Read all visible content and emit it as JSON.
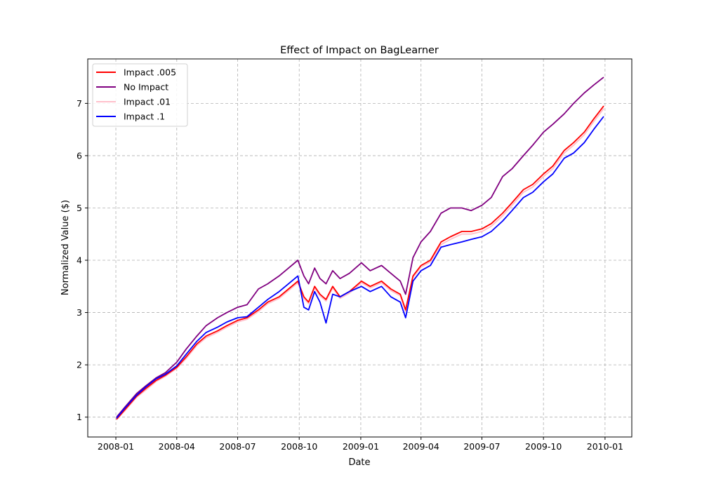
{
  "chart_data": {
    "type": "line",
    "title": "Effect of Impact on BagLearner",
    "xlabel": "Date",
    "ylabel": "Normalized Value ($)",
    "x_ticks": [
      "2008-01",
      "2008-04",
      "2008-07",
      "2008-10",
      "2009-01",
      "2009-04",
      "2009-07",
      "2009-10",
      "2010-01"
    ],
    "y_ticks": [
      1,
      2,
      3,
      4,
      5,
      6,
      7
    ],
    "xlim": [
      "2007-11-20",
      "2010-02-10"
    ],
    "ylim": [
      0.62,
      7.85
    ],
    "grid": true,
    "legend_position": "top-left",
    "colors": {
      "impact_005": "#ff0000",
      "no_impact": "#800080",
      "impact_01": "#ffc0cb",
      "impact_1": "#0000ff",
      "grid": "#b0b0b0"
    },
    "series": [
      {
        "name": "Impact .005",
        "color": "#ff0000",
        "x": [
          "2008-01-02",
          "2008-01-15",
          "2008-02-01",
          "2008-02-15",
          "2008-03-01",
          "2008-03-15",
          "2008-04-01",
          "2008-04-15",
          "2008-05-01",
          "2008-05-15",
          "2008-06-01",
          "2008-06-15",
          "2008-07-01",
          "2008-07-15",
          "2008-08-01",
          "2008-08-15",
          "2008-09-01",
          "2008-09-15",
          "2008-09-29",
          "2008-10-08",
          "2008-10-15",
          "2008-10-24",
          "2008-11-01",
          "2008-11-10",
          "2008-11-20",
          "2008-12-01",
          "2008-12-15",
          "2009-01-02",
          "2009-01-15",
          "2009-02-01",
          "2009-02-15",
          "2009-03-01",
          "2009-03-09",
          "2009-03-20",
          "2009-04-01",
          "2009-04-15",
          "2009-05-01",
          "2009-05-15",
          "2009-06-01",
          "2009-06-15",
          "2009-07-01",
          "2009-07-15",
          "2009-08-01",
          "2009-08-15",
          "2009-09-01",
          "2009-09-15",
          "2009-10-01",
          "2009-10-15",
          "2009-11-01",
          "2009-11-15",
          "2009-12-01",
          "2009-12-15",
          "2009-12-30"
        ],
        "y": [
          0.96,
          1.15,
          1.4,
          1.55,
          1.7,
          1.8,
          1.95,
          2.15,
          2.4,
          2.55,
          2.65,
          2.75,
          2.85,
          2.9,
          3.05,
          3.2,
          3.3,
          3.45,
          3.6,
          3.3,
          3.2,
          3.5,
          3.35,
          3.25,
          3.5,
          3.3,
          3.4,
          3.6,
          3.5,
          3.6,
          3.45,
          3.35,
          3.05,
          3.7,
          3.9,
          4.0,
          4.35,
          4.45,
          4.55,
          4.55,
          4.6,
          4.7,
          4.9,
          5.1,
          5.35,
          5.45,
          5.65,
          5.8,
          6.1,
          6.25,
          6.45,
          6.7,
          6.95
        ]
      },
      {
        "name": "No Impact",
        "color": "#800080",
        "x": [
          "2008-01-02",
          "2008-01-15",
          "2008-02-01",
          "2008-02-15",
          "2008-03-01",
          "2008-03-15",
          "2008-04-01",
          "2008-04-15",
          "2008-05-01",
          "2008-05-15",
          "2008-06-01",
          "2008-06-15",
          "2008-07-01",
          "2008-07-15",
          "2008-08-01",
          "2008-08-15",
          "2008-09-01",
          "2008-09-15",
          "2008-09-29",
          "2008-10-08",
          "2008-10-15",
          "2008-10-24",
          "2008-11-01",
          "2008-11-10",
          "2008-11-20",
          "2008-12-01",
          "2008-12-15",
          "2009-01-02",
          "2009-01-15",
          "2009-02-01",
          "2009-02-15",
          "2009-03-01",
          "2009-03-09",
          "2009-03-20",
          "2009-04-01",
          "2009-04-15",
          "2009-05-01",
          "2009-05-15",
          "2009-06-01",
          "2009-06-15",
          "2009-07-01",
          "2009-07-15",
          "2009-08-01",
          "2009-08-15",
          "2009-09-01",
          "2009-09-15",
          "2009-10-01",
          "2009-10-15",
          "2009-11-01",
          "2009-11-15",
          "2009-12-01",
          "2009-12-15",
          "2009-12-30"
        ],
        "y": [
          1.0,
          1.2,
          1.45,
          1.6,
          1.75,
          1.85,
          2.05,
          2.3,
          2.55,
          2.75,
          2.9,
          3.0,
          3.1,
          3.15,
          3.45,
          3.55,
          3.7,
          3.85,
          4.0,
          3.7,
          3.55,
          3.85,
          3.65,
          3.55,
          3.8,
          3.65,
          3.75,
          3.95,
          3.8,
          3.9,
          3.75,
          3.6,
          3.35,
          4.05,
          4.35,
          4.55,
          4.9,
          5.0,
          5.0,
          4.95,
          5.05,
          5.2,
          5.6,
          5.75,
          6.0,
          6.2,
          6.45,
          6.6,
          6.8,
          7.0,
          7.2,
          7.35,
          7.5
        ]
      },
      {
        "name": "Impact .01",
        "color": "#ffc0cb",
        "x": [
          "2008-01-02",
          "2008-01-15",
          "2008-02-01",
          "2008-02-15",
          "2008-03-01",
          "2008-03-15",
          "2008-04-01",
          "2008-04-15",
          "2008-05-01",
          "2008-05-15",
          "2008-06-01",
          "2008-06-15",
          "2008-07-01",
          "2008-07-15",
          "2008-08-01",
          "2008-08-15",
          "2008-09-01",
          "2008-09-15",
          "2008-09-29",
          "2008-10-08",
          "2008-10-15",
          "2008-10-24",
          "2008-11-01",
          "2008-11-10",
          "2008-11-20",
          "2008-12-01",
          "2008-12-15",
          "2009-01-02",
          "2009-01-15",
          "2009-02-01",
          "2009-02-15",
          "2009-03-01",
          "2009-03-09",
          "2009-03-20",
          "2009-04-01",
          "2009-04-15",
          "2009-05-01",
          "2009-05-15",
          "2009-06-01",
          "2009-06-15",
          "2009-07-01",
          "2009-07-15",
          "2009-08-01",
          "2009-08-15",
          "2009-09-01",
          "2009-09-15",
          "2009-10-01",
          "2009-10-15",
          "2009-11-01",
          "2009-11-15",
          "2009-12-01",
          "2009-12-15",
          "2009-12-30"
        ],
        "y": [
          0.95,
          1.13,
          1.38,
          1.52,
          1.68,
          1.78,
          1.93,
          2.12,
          2.37,
          2.52,
          2.62,
          2.72,
          2.82,
          2.87,
          3.02,
          3.17,
          3.27,
          3.42,
          3.57,
          3.27,
          3.17,
          3.47,
          3.32,
          3.22,
          3.47,
          3.27,
          3.37,
          3.57,
          3.47,
          3.57,
          3.42,
          3.32,
          3.02,
          3.67,
          3.87,
          3.97,
          4.3,
          4.4,
          4.5,
          4.5,
          4.55,
          4.65,
          4.85,
          5.05,
          5.3,
          5.4,
          5.6,
          5.75,
          6.05,
          6.2,
          6.4,
          6.65,
          6.9
        ]
      },
      {
        "name": "Impact .1",
        "color": "#0000ff",
        "x": [
          "2008-01-02",
          "2008-01-15",
          "2008-02-01",
          "2008-02-15",
          "2008-03-01",
          "2008-03-15",
          "2008-04-01",
          "2008-04-15",
          "2008-05-01",
          "2008-05-15",
          "2008-06-01",
          "2008-06-15",
          "2008-07-01",
          "2008-07-15",
          "2008-08-01",
          "2008-08-15",
          "2008-09-01",
          "2008-09-15",
          "2008-09-29",
          "2008-10-08",
          "2008-10-15",
          "2008-10-24",
          "2008-11-01",
          "2008-11-10",
          "2008-11-20",
          "2008-12-01",
          "2008-12-15",
          "2009-01-02",
          "2009-01-15",
          "2009-02-01",
          "2009-02-15",
          "2009-03-01",
          "2009-03-09",
          "2009-03-20",
          "2009-04-01",
          "2009-04-15",
          "2009-05-01",
          "2009-05-15",
          "2009-06-01",
          "2009-06-15",
          "2009-07-01",
          "2009-07-15",
          "2009-08-01",
          "2009-08-15",
          "2009-09-01",
          "2009-09-15",
          "2009-10-01",
          "2009-10-15",
          "2009-11-01",
          "2009-11-15",
          "2009-12-01",
          "2009-12-15",
          "2009-12-30"
        ],
        "y": [
          0.98,
          1.18,
          1.42,
          1.58,
          1.73,
          1.82,
          1.98,
          2.2,
          2.45,
          2.62,
          2.72,
          2.82,
          2.9,
          2.92,
          3.1,
          3.25,
          3.4,
          3.55,
          3.7,
          3.1,
          3.05,
          3.4,
          3.2,
          2.8,
          3.35,
          3.3,
          3.4,
          3.5,
          3.4,
          3.5,
          3.3,
          3.2,
          2.9,
          3.6,
          3.8,
          3.9,
          4.25,
          4.3,
          4.35,
          4.4,
          4.45,
          4.55,
          4.75,
          4.95,
          5.2,
          5.3,
          5.5,
          5.65,
          5.95,
          6.05,
          6.25,
          6.5,
          6.75
        ]
      }
    ]
  }
}
